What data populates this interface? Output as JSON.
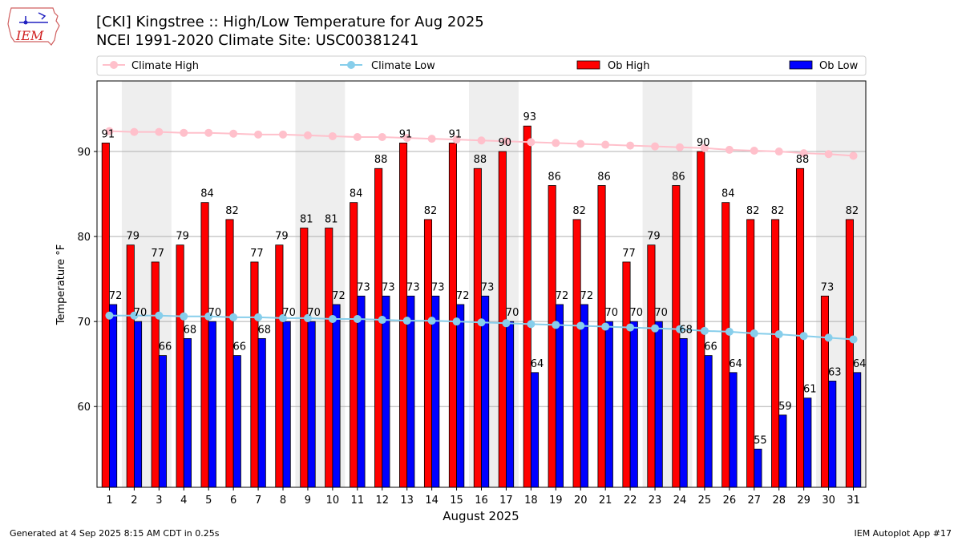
{
  "header": {
    "title_line1": "[CKI] Kingstree :: High/Low Temperature for Aug 2025",
    "title_line2": "NCEI 1991-2020 Climate Site: USC00381241",
    "logo_text": "IEM"
  },
  "footer": {
    "generated": "Generated at 4 Sep 2025 8:15 AM CDT in 0.25s",
    "app": "IEM Autoplot App #17"
  },
  "colors": {
    "ob_high": "#ff0000",
    "ob_low": "#0000ff",
    "climate_high": "#ffc0cb",
    "climate_low": "#87ceeb",
    "weekend_shade": "#eeeeee",
    "grid": "#b0b0b0"
  },
  "chart_data": {
    "type": "bar",
    "title": "[CKI] Kingstree :: High/Low Temperature for Aug 2025",
    "xlabel": "August 2025",
    "ylabel": "Temperature °F",
    "ylim": [
      50.5,
      98.3
    ],
    "yticks": [
      60,
      70,
      80,
      90
    ],
    "grid": true,
    "legend_position": "top",
    "categories": [
      "1",
      "2",
      "3",
      "4",
      "5",
      "6",
      "7",
      "8",
      "9",
      "10",
      "11",
      "12",
      "13",
      "14",
      "15",
      "16",
      "17",
      "18",
      "19",
      "20",
      "21",
      "22",
      "23",
      "24",
      "25",
      "26",
      "27",
      "28",
      "29",
      "30",
      "31"
    ],
    "shaded_days": [
      [
        2,
        3
      ],
      [
        9,
        10
      ],
      [
        16,
        17
      ],
      [
        23,
        24
      ],
      [
        30,
        31
      ]
    ],
    "series": [
      {
        "name": "Climate High",
        "kind": "line",
        "values": [
          92.4,
          92.3,
          92.3,
          92.2,
          92.2,
          92.1,
          92.0,
          92.0,
          91.9,
          91.8,
          91.7,
          91.7,
          91.6,
          91.5,
          91.4,
          91.3,
          91.2,
          91.1,
          91.0,
          90.9,
          90.8,
          90.7,
          90.6,
          90.5,
          90.4,
          90.2,
          90.1,
          90.0,
          89.8,
          89.7,
          89.5
        ]
      },
      {
        "name": "Climate Low",
        "kind": "line",
        "values": [
          70.7,
          70.7,
          70.7,
          70.6,
          70.6,
          70.5,
          70.5,
          70.4,
          70.4,
          70.3,
          70.3,
          70.2,
          70.1,
          70.1,
          70.0,
          69.9,
          69.8,
          69.7,
          69.6,
          69.5,
          69.4,
          69.3,
          69.2,
          69.1,
          68.9,
          68.8,
          68.6,
          68.5,
          68.3,
          68.1,
          67.9
        ]
      },
      {
        "name": "Ob High",
        "kind": "bar",
        "values": [
          91,
          79,
          77,
          79,
          84,
          82,
          77,
          79,
          81,
          81,
          84,
          88,
          91,
          82,
          91,
          88,
          90,
          93,
          86,
          82,
          86,
          77,
          79,
          86,
          90,
          84,
          82,
          82,
          88,
          73,
          82
        ]
      },
      {
        "name": "Ob Low",
        "kind": "bar",
        "values": [
          72,
          70,
          66,
          68,
          70,
          66,
          68,
          70,
          70,
          72,
          73,
          73,
          73,
          73,
          72,
          73,
          70,
          64,
          72,
          72,
          70,
          70,
          70,
          68,
          66,
          64,
          55,
          59,
          61,
          63,
          64
        ]
      }
    ]
  }
}
